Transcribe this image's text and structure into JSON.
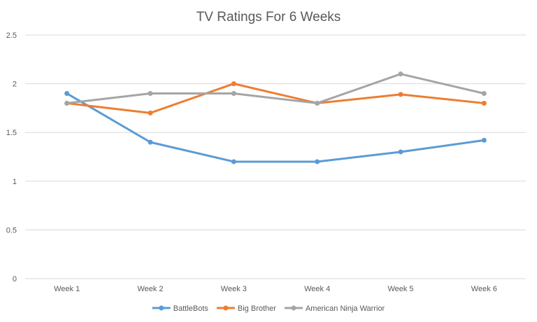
{
  "chart_data": {
    "type": "line",
    "title": "TV Ratings For 6 Weeks",
    "xlabel": "",
    "ylabel": "",
    "categories": [
      "Week 1",
      "Week 2",
      "Week 3",
      "Week 4",
      "Week 5",
      "Week 6"
    ],
    "ylim": [
      0,
      2.5
    ],
    "yticks": [
      "0",
      "0.5",
      "1",
      "1.5",
      "2",
      "2.5"
    ],
    "grid": true,
    "legend_position": "bottom",
    "series": [
      {
        "name": "BattleBots",
        "color": "#5b9bd5",
        "values": [
          1.9,
          1.4,
          1.2,
          1.2,
          1.3,
          1.42
        ]
      },
      {
        "name": "Big Brother",
        "color": "#ed7d31",
        "values": [
          1.8,
          1.7,
          2.0,
          1.8,
          1.89,
          1.8
        ]
      },
      {
        "name": "American Ninja Warrior",
        "color": "#a5a5a5",
        "values": [
          1.8,
          1.9,
          1.9,
          1.8,
          2.1,
          1.9
        ]
      }
    ]
  }
}
